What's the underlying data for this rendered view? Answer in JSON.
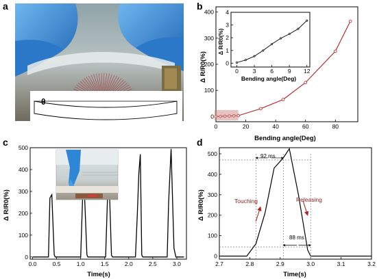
{
  "panels": {
    "a": {
      "letter": "a",
      "symbol": "θ"
    },
    "b": {
      "letter": "b",
      "xlabel": "Bending angle(Deg)",
      "ylabel": "Δ R/R0(%)",
      "inset_xlabel": "Bending angle(Deg)",
      "inset_ylabel": "Δ R/R0(%)"
    },
    "c": {
      "letter": "c",
      "xlabel": "Time(s)",
      "ylabel": "Δ R/R0(%)"
    },
    "d": {
      "letter": "d",
      "xlabel": "Time(s)",
      "ylabel": "Δ R/R0(%)",
      "touching_label": "Touching",
      "releasing_label": "Releasing",
      "rise_time_label": "92 ms",
      "fall_time_label": "88 ms"
    }
  },
  "colors": {
    "accent_red": "#b22222",
    "glove_blue": "#2a7fd0",
    "line_black": "#000000"
  },
  "chart_data": [
    {
      "id": "b-main",
      "type": "line",
      "xlabel": "Bending angle(Deg)",
      "ylabel": "Δ R/R0(%)",
      "xlim": [
        0,
        95
      ],
      "ylim": [
        -20,
        420
      ],
      "xticks": [
        0,
        20,
        40,
        60,
        80
      ],
      "yticks": [
        0,
        100,
        200,
        300,
        400
      ],
      "series": [
        {
          "x": [
            0,
            3,
            6,
            9,
            12,
            15,
            30,
            45,
            60,
            80,
            90
          ],
          "y": [
            0,
            0.5,
            1.2,
            2.0,
            2.7,
            3.3,
            30,
            65,
            130,
            250,
            365
          ]
        }
      ]
    },
    {
      "id": "b-inset",
      "type": "line",
      "xlabel": "Bending angle(Deg)",
      "ylabel": "Δ R/R0(%)",
      "xlim": [
        -1,
        12.5
      ],
      "ylim": [
        -0.3,
        4
      ],
      "xticks": [
        0,
        3,
        6,
        9,
        12
      ],
      "yticks": [
        0,
        1,
        2,
        3,
        4
      ],
      "series": [
        {
          "x": [
            0,
            1.5,
            3,
            4.5,
            6,
            7.5,
            9,
            10.5,
            12
          ],
          "y": [
            0.05,
            0.25,
            0.55,
            1.0,
            1.5,
            1.95,
            2.3,
            2.7,
            3.35
          ]
        }
      ]
    },
    {
      "id": "c",
      "type": "line",
      "xlabel": "Time(s)",
      "ylabel": "Δ R/R0(%)",
      "xlim": [
        -0.05,
        3.2
      ],
      "ylim": [
        -10,
        500
      ],
      "xticks": [
        0.0,
        0.5,
        1.0,
        1.5,
        2.0,
        2.5,
        3.0
      ],
      "yticks": [
        0,
        100,
        200,
        300,
        400,
        500
      ],
      "series": [
        {
          "x": [
            0.0,
            0.33,
            0.36,
            0.4,
            0.45,
            0.47,
            1.0,
            1.04,
            1.08,
            1.13,
            1.15,
            1.52,
            1.56,
            1.6,
            1.64,
            1.66,
            2.14,
            2.18,
            2.21,
            2.24,
            2.27,
            2.29,
            2.8,
            2.83,
            2.88,
            2.94,
            2.98,
            3.15
          ],
          "y": [
            0,
            0,
            270,
            285,
            10,
            0,
            0,
            270,
            285,
            10,
            0,
            0,
            280,
            290,
            10,
            0,
            0,
            200,
            380,
            470,
            10,
            0,
            0,
            250,
            495,
            40,
            0,
            0
          ]
        }
      ]
    },
    {
      "id": "d",
      "type": "line",
      "xlabel": "Time(s)",
      "ylabel": "Δ R/R0(%)",
      "xlim": [
        2.7,
        3.2
      ],
      "ylim": [
        -15,
        530
      ],
      "xticks": [
        2.7,
        2.8,
        2.9,
        3.0,
        3.1,
        3.2
      ],
      "yticks": [
        0,
        100,
        200,
        300,
        400,
        500
      ],
      "series": [
        {
          "x": [
            2.7,
            2.79,
            2.82,
            2.85,
            2.88,
            2.91,
            2.93,
            2.96,
            2.99,
            3.0,
            3.2
          ],
          "y": [
            0,
            0,
            60,
            210,
            430,
            480,
            525,
            300,
            30,
            0,
            0
          ]
        }
      ],
      "annotations": [
        {
          "text": "92 ms"
        },
        {
          "text": "88 ms"
        },
        {
          "text": "Touching"
        },
        {
          "text": "Releasing"
        }
      ]
    }
  ]
}
